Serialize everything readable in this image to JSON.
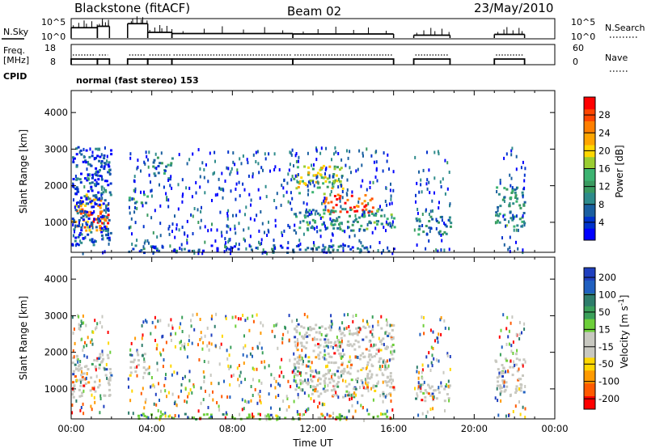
{
  "header": {
    "title": "Blackstone (fitACF)",
    "beam": "Beam 02",
    "date": "23/May/2010"
  },
  "chart_data": [
    {
      "type": "line",
      "name_left": "N.Sky",
      "name_right": "N.Search",
      "yticks_left": [
        "10^5",
        "10^0"
      ],
      "yticks_right": [
        "10^5",
        "10^0"
      ],
      "x_range_hours": [
        0,
        24
      ],
      "series": [
        {
          "segments": [
            [
              0.0,
              1.3,
              0.55
            ],
            [
              1.3,
              1.9,
              0.62
            ],
            [
              2.8,
              3.8,
              0.75
            ],
            [
              3.8,
              5.0,
              0.32
            ],
            [
              5.0,
              11.0,
              0.26
            ],
            [
              11.0,
              16.0,
              0.24
            ],
            [
              17.0,
              18.8,
              0.18
            ],
            [
              21.0,
              22.5,
              0.22
            ]
          ]
        }
      ]
    },
    {
      "type": "line",
      "name_left": "Freq.\n[MHz]",
      "name_right": "Nave",
      "yticks_left": [
        "18",
        "8"
      ],
      "yticks_right": [
        "60",
        "0"
      ],
      "x_range_hours": [
        0,
        24
      ]
    },
    {
      "type": "text",
      "name": "CPID",
      "value": "normal (fast stereo) 153"
    },
    {
      "type": "heatmap",
      "ylabel": "Slant Range [km]",
      "xlim_hours": [
        0,
        24
      ],
      "ylim_km": [
        180,
        4600
      ],
      "yticks": [
        1000,
        2000,
        3000,
        4000
      ],
      "colorbar": {
        "label": "Power [dB]",
        "ticks": [
          4,
          8,
          12,
          16,
          20,
          24,
          28
        ],
        "range": [
          0,
          32
        ],
        "colors": [
          "#0000ff",
          "#0033cc",
          "#1a5fa0",
          "#2e8b8b",
          "#3a9a60",
          "#3cb371",
          "#9acd32",
          "#ffd700",
          "#ffa500",
          "#ff7f00",
          "#ff4500",
          "#ff0000"
        ]
      },
      "regions": [
        {
          "t": [
            0.0,
            2.0
          ],
          "r": [
            800,
            1800
          ],
          "level": 0.7
        },
        {
          "t": [
            0.6,
            1.8
          ],
          "r": [
            1000,
            1300
          ],
          "level": 0.95
        },
        {
          "t": [
            0.0,
            2.0
          ],
          "r": [
            400,
            3100
          ],
          "level": 0.15
        },
        {
          "t": [
            2.8,
            3.8
          ],
          "r": [
            1500,
            1800
          ],
          "level": 0.35
        },
        {
          "t": [
            4.0,
            5.0
          ],
          "r": [
            2200,
            2800
          ],
          "level": 0.3
        },
        {
          "t": [
            11.0,
            13.5
          ],
          "r": [
            1800,
            2600
          ],
          "level": 0.55
        },
        {
          "t": [
            12.5,
            15.0
          ],
          "r": [
            1300,
            1800
          ],
          "level": 0.9
        },
        {
          "t": [
            11.0,
            16.0
          ],
          "r": [
            800,
            1400
          ],
          "level": 0.35
        },
        {
          "t": [
            17.0,
            18.8
          ],
          "r": [
            700,
            1200
          ],
          "level": 0.3
        },
        {
          "t": [
            21.0,
            22.5
          ],
          "r": [
            900,
            2000
          ],
          "level": 0.35
        },
        {
          "t": [
            2.8,
            16.0
          ],
          "r": [
            200,
            400
          ],
          "level": 0.2
        }
      ]
    },
    {
      "type": "heatmap",
      "ylabel": "Slant Range [km]",
      "xlabel": "Time UT",
      "xlim_hours": [
        0,
        24
      ],
      "ylim_km": [
        180,
        4600
      ],
      "yticks": [
        1000,
        2000,
        3000,
        4000
      ],
      "xticks": [
        "00:00",
        "04:00",
        "08:00",
        "12:00",
        "16:00",
        "20:00",
        "00:00"
      ],
      "colorbar": {
        "label": "Velocity [m s^-1]",
        "ticks": [
          200,
          100,
          50,
          15,
          -15,
          -50,
          -100,
          -200
        ],
        "colors": [
          "#1f3fbf",
          "#2060c0",
          "#2e7d6b",
          "#3aa05a",
          "#6dcf3a",
          "#c8c8c0",
          "#c8c8c0",
          "#ffd700",
          "#ff9a00",
          "#ff5a00",
          "#ff0000"
        ]
      },
      "regions": [
        {
          "t": [
            0.0,
            2.0
          ],
          "r": [
            800,
            2000
          ],
          "color": "#c8c8c0"
        },
        {
          "t": [
            2.8,
            3.8
          ],
          "r": [
            1400,
            2000
          ],
          "color": "#c8c8c0"
        },
        {
          "t": [
            11.0,
            16.0
          ],
          "r": [
            800,
            2800
          ],
          "color": "#c8c8c0"
        },
        {
          "t": [
            17.0,
            18.8
          ],
          "r": [
            700,
            1200
          ],
          "color": "#c8c8c0"
        },
        {
          "t": [
            21.0,
            22.5
          ],
          "r": [
            900,
            2000
          ],
          "color": "#c8c8c0"
        },
        {
          "t": [
            2.8,
            16.0
          ],
          "r": [
            200,
            350
          ],
          "color": "#6dcf3a"
        }
      ]
    }
  ]
}
